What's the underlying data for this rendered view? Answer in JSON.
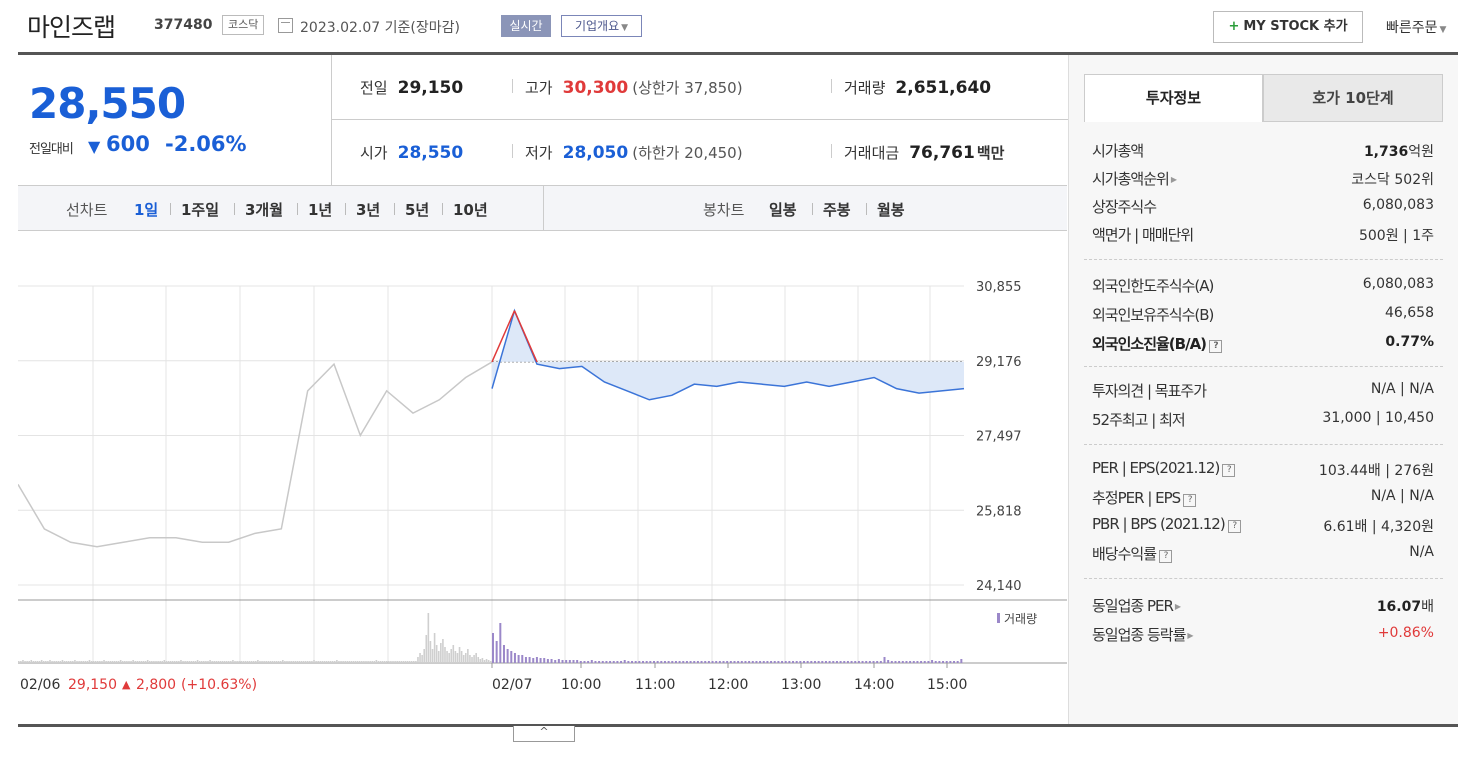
{
  "header": {
    "name": "마인즈랩",
    "code": "377480",
    "market": "코스닥",
    "date": "2023.02.07 기준(장마감)",
    "live_label": "실시간",
    "company_label": "기업개요",
    "mystock_label": "MY STOCK 추가",
    "quick_order_label": "빠른주문"
  },
  "price": {
    "current": "28,550",
    "change_label": "전일대비",
    "change_value": "600",
    "change_pct": "-2.06%",
    "direction": "down"
  },
  "stats": {
    "prev_label": "전일",
    "prev": "29,150",
    "high_label": "고가",
    "high": "30,300",
    "upper_limit": "(상한가 37,850)",
    "volume_label": "거래량",
    "volume": "2,651,640",
    "open_label": "시가",
    "open": "28,550",
    "low_label": "저가",
    "low": "28,050",
    "lower_limit": "(하한가 20,450)",
    "amount_label": "거래대금",
    "amount": "76,761",
    "amount_unit": "백만"
  },
  "toolbar": {
    "line_label": "선차트",
    "line_options": [
      "1일",
      "1주일",
      "3개월",
      "1년",
      "3년",
      "5년",
      "10년"
    ],
    "line_active": "1일",
    "candle_label": "봉차트",
    "candle_options": [
      "일봉",
      "주봉",
      "월봉"
    ]
  },
  "chart_data": {
    "type": "line",
    "title": "",
    "xlabel": "",
    "ylabel": "",
    "ylim": [
      24140,
      30855
    ],
    "y_ticks": [
      "30,855",
      "29,176",
      "27,497",
      "25,818",
      "24,140"
    ],
    "x_ticks": [
      "02/07",
      "10:00",
      "11:00",
      "12:00",
      "13:00",
      "14:00",
      "15:00"
    ],
    "prev_close": 29150,
    "volume_label": "거래량",
    "prev_day_label": "02/06",
    "prev_day_close": "29,150",
    "prev_day_change": "2,800",
    "prev_day_pct": "(+10.63%)",
    "series": [
      {
        "name": "",
        "x": [
          "02/06 09:00",
          "09:30",
          "10:00",
          "10:30",
          "11:00",
          "11:30",
          "12:00",
          "12:30",
          "13:00",
          "13:30",
          "14:00",
          "14:20",
          "14:30",
          "14:40",
          "14:50",
          "15:00",
          "15:10",
          "15:20",
          "15:30"
        ],
        "values": [
          26400,
          25400,
          25100,
          25000,
          25100,
          25200,
          25200,
          25100,
          25100,
          25300,
          25400,
          28500,
          29100,
          27500,
          28500,
          28000,
          28300,
          28800,
          29150
        ]
      },
      {
        "name": "",
        "x": [
          "09:00",
          "09:05",
          "09:10",
          "09:15",
          "09:20",
          "09:30",
          "09:45",
          "10:00",
          "10:30",
          "11:00",
          "11:30",
          "12:00",
          "12:30",
          "13:00",
          "13:30",
          "14:00",
          "14:20",
          "14:30",
          "14:45",
          "15:00",
          "15:20",
          "15:30"
        ],
        "values": [
          28550,
          30300,
          29100,
          29000,
          29050,
          28700,
          28500,
          28300,
          28400,
          28650,
          28600,
          28700,
          28650,
          28600,
          28700,
          28600,
          28700,
          28800,
          28550,
          28450,
          28500,
          28550
        ]
      }
    ]
  },
  "invest": {
    "tab_active": "투자정보",
    "tab_other": "호가 10단계",
    "rows1": [
      {
        "k": "시가총액",
        "v": "1,736",
        "u": "억원"
      },
      {
        "k": "시가총액순위",
        "v": "코스닥 502위"
      },
      {
        "k": "상장주식수",
        "v": "6,080,083"
      },
      {
        "k": "액면가 | 매매단위",
        "v": "500원 | 1주"
      }
    ],
    "rows2": [
      {
        "k": "외국인한도주식수(A)",
        "v": "6,080,083"
      },
      {
        "k": "외국인보유주식수(B)",
        "v": "46,658"
      },
      {
        "k": "외국인소진율(B/A)",
        "v": "0.77%"
      }
    ],
    "rows3": [
      {
        "k": "투자의견 | 목표주가",
        "v": "N/A | N/A"
      },
      {
        "k": "52주최고 | 최저",
        "v": "31,000 | 10,450"
      }
    ],
    "rows4": [
      {
        "k": "PER | EPS(2021.12)",
        "v": "103.44배 | 276원"
      },
      {
        "k": "추정PER | EPS",
        "v": "N/A | N/A"
      },
      {
        "k": "PBR | BPS (2021.12)",
        "v": "6.61배 | 4,320원"
      },
      {
        "k": "배당수익률",
        "v": "N/A"
      }
    ],
    "rows5": [
      {
        "k": "동일업종 PER",
        "v": "16.07",
        "u": "배"
      },
      {
        "k": "동일업종 등락률",
        "v": "+0.86%"
      }
    ],
    "qmark": "?",
    "colors": {
      "up": "#e03a3a",
      "down": "#1a5fd6",
      "intraday": "#3b74d8",
      "prevday": "#c8c8c8",
      "volume": "#9b88c9"
    }
  },
  "fold_icon": "^",
  "mystock_icon": "+"
}
